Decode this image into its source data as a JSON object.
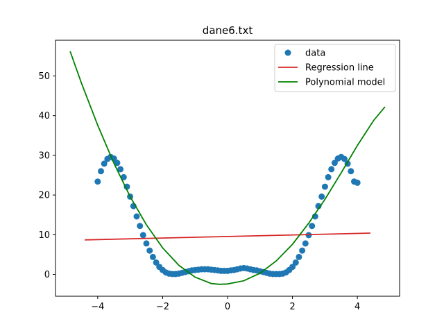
{
  "chart_data": {
    "type": "scatter",
    "title": "dane6.txt",
    "xlabel": "",
    "ylabel": "",
    "xlim": [
      -5.3,
      5.3
    ],
    "ylim": [
      -5.5,
      59
    ],
    "grid": false,
    "legend_position": "top-right",
    "x_ticks": [
      -4,
      -2,
      0,
      2,
      4
    ],
    "x_tick_labels": [
      "−4",
      "−2",
      "0",
      "2",
      "4"
    ],
    "y_ticks": [
      0,
      10,
      20,
      30,
      40,
      50
    ],
    "y_tick_labels": [
      "0",
      "10",
      "20",
      "30",
      "40",
      "50"
    ],
    "series": [
      {
        "name": "data",
        "kind": "scatter",
        "color": "#1f77b4",
        "x": [
          -4.0,
          -3.9,
          -3.8,
          -3.7,
          -3.6,
          -3.5,
          -3.4,
          -3.3,
          -3.2,
          -3.1,
          -3.0,
          -2.9,
          -2.8,
          -2.7,
          -2.6,
          -2.5,
          -2.4,
          -2.3,
          -2.2,
          -2.1,
          -2.0,
          -1.9,
          -1.8,
          -1.7,
          -1.6,
          -1.5,
          -1.4,
          -1.3,
          -1.2,
          -1.1,
          -1.0,
          -0.9,
          -0.8,
          -0.7,
          -0.6,
          -0.5,
          -0.4,
          -0.3,
          -0.2,
          -0.1,
          0.0,
          0.1,
          0.2,
          0.3,
          0.4,
          0.5,
          0.6,
          0.7,
          0.8,
          0.9,
          1.0,
          1.1,
          1.2,
          1.3,
          1.4,
          1.5,
          1.6,
          1.7,
          1.8,
          1.9,
          2.0,
          2.1,
          2.2,
          2.3,
          2.4,
          2.5,
          2.6,
          2.7,
          2.8,
          2.9,
          3.0,
          3.1,
          3.2,
          3.3,
          3.4,
          3.5,
          3.6,
          3.7,
          3.8,
          3.9,
          4.0
        ],
        "y": [
          23.4,
          26.0,
          27.9,
          29.1,
          29.6,
          29.2,
          28.1,
          26.5,
          24.5,
          22.1,
          19.6,
          17.2,
          14.6,
          12.2,
          9.9,
          7.8,
          6.0,
          4.4,
          3.0,
          1.9,
          1.1,
          0.5,
          0.2,
          0.1,
          0.1,
          0.2,
          0.4,
          0.6,
          0.8,
          1.0,
          1.1,
          1.2,
          1.3,
          1.3,
          1.3,
          1.2,
          1.1,
          1.0,
          0.9,
          0.9,
          0.9,
          1.0,
          1.1,
          1.3,
          1.5,
          1.6,
          1.5,
          1.3,
          1.1,
          1.0,
          0.8,
          0.6,
          0.4,
          0.2,
          0.1,
          0.1,
          0.1,
          0.2,
          0.5,
          1.1,
          1.9,
          3.0,
          4.4,
          6.0,
          7.8,
          9.9,
          12.2,
          14.6,
          17.2,
          19.6,
          22.1,
          24.5,
          26.5,
          28.1,
          29.2,
          29.6,
          29.1,
          27.9,
          26.0,
          23.4,
          23.1
        ]
      },
      {
        "name": "Regression line",
        "kind": "line",
        "color": "#d62728",
        "x": [
          -4.4,
          4.4
        ],
        "y": [
          8.7,
          10.4
        ]
      },
      {
        "name": "Polynomial model",
        "kind": "line",
        "color": "#008000",
        "x": [
          -4.85,
          -4.5,
          -4.0,
          -3.5,
          -3.0,
          -2.5,
          -2.0,
          -1.5,
          -1.0,
          -0.5,
          -0.25,
          0.0,
          0.5,
          1.0,
          1.5,
          2.0,
          2.5,
          3.0,
          3.5,
          4.0,
          4.5,
          4.85
        ],
        "y": [
          56.2,
          48.2,
          37.6,
          28.0,
          19.6,
          12.5,
          6.7,
          2.3,
          -0.7,
          -2.3,
          -2.5,
          -2.4,
          -1.6,
          0.3,
          3.4,
          7.6,
          12.9,
          18.9,
          25.6,
          32.5,
          38.8,
          42.2
        ]
      }
    ]
  }
}
